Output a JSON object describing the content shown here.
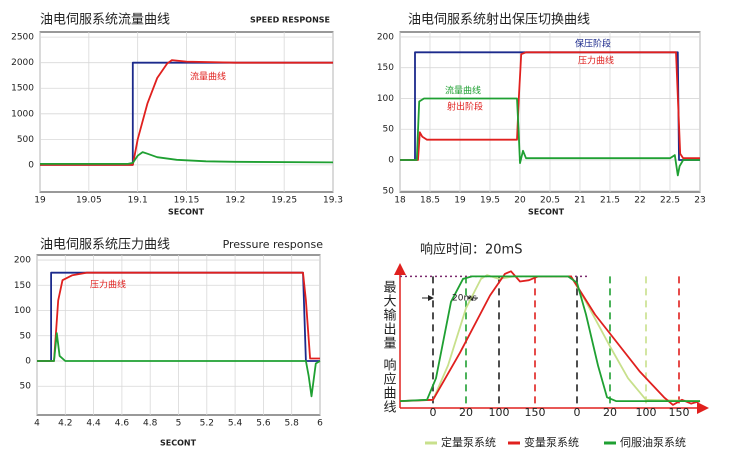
{
  "chart_data": [
    {
      "type": "line",
      "title": "油电伺服系统流量曲线",
      "subtitle": "SPEED RESPONSE",
      "xlabel": "SECONT",
      "xlim": [
        19,
        19.3
      ],
      "xticks": [
        19,
        19.05,
        19.1,
        19.15,
        19.2,
        19.25,
        19.3
      ],
      "ylim": [
        -530,
        2600
      ],
      "yticks": [
        0,
        500,
        1000,
        1500,
        2000,
        2500
      ],
      "grid": true,
      "annotations": [
        {
          "text": "流量曲线",
          "color": "#e0201e"
        }
      ],
      "series": [
        {
          "color": "#1c2a8c",
          "x": [
            19,
            19.095,
            19.095,
            19.3
          ],
          "values": [
            0,
            0,
            2000,
            2000
          ]
        },
        {
          "color": "#e0201e",
          "x": [
            19,
            19.095,
            19.1,
            19.11,
            19.12,
            19.13,
            19.135,
            19.15,
            19.2,
            19.3
          ],
          "values": [
            0,
            0,
            500,
            1200,
            1700,
            1980,
            2050,
            2020,
            2000,
            2000
          ]
        },
        {
          "color": "#1fa032",
          "x": [
            19,
            19.09,
            19.095,
            19.1,
            19.105,
            19.11,
            19.12,
            19.14,
            19.17,
            19.2,
            19.3
          ],
          "values": [
            20,
            20,
            40,
            180,
            250,
            220,
            150,
            100,
            70,
            60,
            50
          ]
        }
      ]
    },
    {
      "type": "line",
      "title": "油电伺服系统射出保压切换曲线",
      "xlabel": "SECONT",
      "xlim": [
        18,
        23
      ],
      "xticks": [
        18,
        18.5,
        19,
        19.5,
        20,
        20.5,
        21,
        21.5,
        22,
        22.5,
        23
      ],
      "ylim": [
        -52,
        208
      ],
      "yticks": [
        {
          "value": -50,
          "label": "50"
        },
        0,
        50,
        100,
        150,
        200
      ],
      "grid": true,
      "annotations": [
        {
          "text": "保压阶段",
          "color": "#1c2a8c"
        },
        {
          "text": "压力曲线",
          "color": "#e0201e"
        },
        {
          "text": "流量曲线",
          "color": "#1fa032"
        },
        {
          "text": "射出阶段",
          "color": "#e0201e"
        }
      ],
      "series": [
        {
          "color": "#1c2a8c",
          "x": [
            18,
            18.25,
            18.25,
            22.63,
            22.65,
            23
          ],
          "values": [
            0,
            0,
            175,
            175,
            0,
            0
          ]
        },
        {
          "color": "#e0201e",
          "x": [
            18,
            18.3,
            18.33,
            18.37,
            18.45,
            19.95,
            19.98,
            20.02,
            20.1,
            22.6,
            22.67,
            22.72,
            23
          ],
          "values": [
            0,
            0,
            45,
            38,
            33,
            33,
            100,
            172,
            175,
            175,
            10,
            3,
            3
          ]
        },
        {
          "color": "#1fa032",
          "x": [
            18,
            18.28,
            18.32,
            18.4,
            19.95,
            19.98,
            20.0,
            20.05,
            20.1,
            22.5,
            22.58,
            22.63,
            22.66,
            22.72,
            23
          ],
          "values": [
            0,
            0,
            95,
            100,
            100,
            40,
            -5,
            15,
            3,
            3,
            8,
            -25,
            -10,
            0,
            0
          ]
        }
      ]
    },
    {
      "type": "line",
      "title": "油电伺服系统压力曲线",
      "subtitle": "Pressure response",
      "xlabel": "SECONT",
      "xlim": [
        4,
        6
      ],
      "xticks": [
        4,
        4.2,
        4.4,
        4.6,
        4.8,
        5,
        5.2,
        5.4,
        5.6,
        5.8,
        6
      ],
      "ylim": [
        -107,
        210
      ],
      "yticks": [
        {
          "value": -50,
          "label": "50"
        },
        0,
        50,
        100,
        150,
        200
      ],
      "grid": true,
      "annotations": [
        {
          "text": "压力曲线",
          "color": "#e0201e"
        }
      ],
      "series": [
        {
          "color": "#1c2a8c",
          "x": [
            4,
            4.1,
            4.1,
            5.88,
            5.9,
            6
          ],
          "values": [
            0,
            0,
            175,
            175,
            0,
            0
          ]
        },
        {
          "color": "#e0201e",
          "x": [
            4,
            4.12,
            4.15,
            4.18,
            4.25,
            4.35,
            5.88,
            5.9,
            5.93,
            6
          ],
          "values": [
            0,
            0,
            120,
            160,
            170,
            175,
            175,
            120,
            5,
            5
          ]
        },
        {
          "color": "#1fa032",
          "x": [
            4,
            4.12,
            4.14,
            4.16,
            4.2,
            5.9,
            5.92,
            5.94,
            5.97,
            6
          ],
          "values": [
            0,
            0,
            55,
            10,
            0,
            0,
            -30,
            -70,
            -5,
            0
          ]
        }
      ]
    },
    {
      "type": "line",
      "title": "响应时间：20mS",
      "ylabels": [
        "最大输出量",
        "响应曲线"
      ],
      "xlim": [
        0,
        100
      ],
      "ylim": [
        -5,
        105
      ],
      "reference_line": 100,
      "xticks": [
        {
          "value": 11,
          "label": "0"
        },
        {
          "value": 22,
          "label": "20"
        },
        {
          "value": 33,
          "label": "100"
        },
        {
          "value": 45,
          "label": "150"
        },
        {
          "value": 59,
          "label": "0"
        },
        {
          "value": 70,
          "label": "20"
        },
        {
          "value": 82,
          "label": "100"
        },
        {
          "value": 93,
          "label": "150"
        }
      ],
      "grid_colors": [
        "#222222",
        "#1fa032",
        "#222222",
        "#e0201e",
        "#222222",
        "#1fa032",
        "#c8e08c",
        "#e0201e"
      ],
      "annotations": [
        {
          "text": "20ms",
          "color": "#222222"
        }
      ],
      "series": [
        {
          "name": "定量泵系统",
          "color": "#c8e08c",
          "x": [
            0,
            11,
            16,
            22,
            27,
            29,
            33,
            38,
            57,
            62,
            70,
            76,
            82,
            100
          ],
          "values": [
            2,
            3,
            30,
            75,
            98,
            101,
            98,
            100,
            100,
            80,
            45,
            20,
            3,
            2
          ]
        },
        {
          "name": "变量泵系统",
          "color": "#e0201e",
          "x": [
            0,
            11,
            20,
            30,
            35,
            37,
            40,
            43,
            46,
            57,
            65,
            80,
            88,
            91,
            94,
            97,
            100
          ],
          "values": [
            2,
            3,
            40,
            85,
            102,
            104,
            96,
            97,
            100,
            100,
            70,
            25,
            5,
            -1,
            3,
            0,
            2
          ]
        },
        {
          "name": "伺服油泵系统",
          "color": "#1fa032",
          "x": [
            0,
            9,
            12,
            17,
            21,
            24,
            56,
            59,
            62,
            66,
            69,
            72,
            100
          ],
          "values": [
            2,
            3,
            20,
            80,
            98,
            100,
            100,
            95,
            70,
            30,
            5,
            2,
            2
          ]
        }
      ]
    }
  ]
}
